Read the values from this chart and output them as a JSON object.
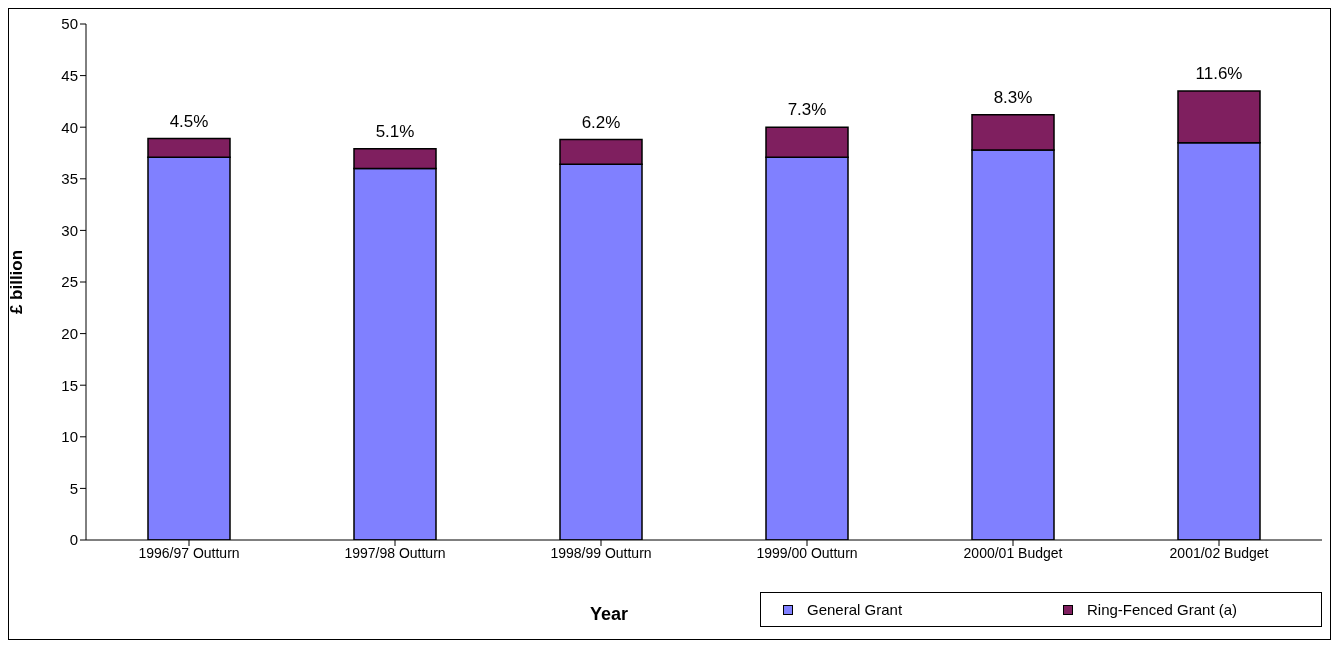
{
  "chart_data": {
    "type": "bar",
    "stacked": true,
    "xlabel": "Year",
    "ylabel": "£ billion",
    "categories": [
      "1996/97 Outturn",
      "1997/98 Outturn",
      "1998/99 Outturn",
      "1999/00 Outturn",
      "2000/01 Budget",
      "2001/02 Budget"
    ],
    "series": [
      {
        "name": "General Grant",
        "color": "#8080ff",
        "values": [
          37.1,
          36.0,
          36.4,
          37.1,
          37.8,
          38.5
        ]
      },
      {
        "name": "Ring-Fenced Grant (a)",
        "color": "#7f1f5f",
        "values": [
          1.8,
          1.9,
          2.4,
          2.9,
          3.4,
          5.0
        ]
      }
    ],
    "annotations": [
      {
        "text": "4.5%",
        "x": "1996/97 Outturn",
        "y": 38.9
      },
      {
        "text": "5.1%",
        "x": "1997/98 Outturn",
        "y": 37.9
      },
      {
        "text": "6.2%",
        "x": "1998/99 Outturn",
        "y": 38.8
      },
      {
        "text": "7.3%",
        "x": "1999/00 Outturn",
        "y": 40.0
      },
      {
        "text": "8.3%",
        "x": "2000/01 Budget",
        "y": 41.2
      },
      {
        "text": "11.6%",
        "x": "2001/02 Budget",
        "y": 43.5
      }
    ],
    "ylim": [
      0,
      50
    ],
    "yticks": [
      0,
      5,
      10,
      15,
      20,
      25,
      30,
      35,
      40,
      45,
      50
    ],
    "legend": "bottom right"
  }
}
